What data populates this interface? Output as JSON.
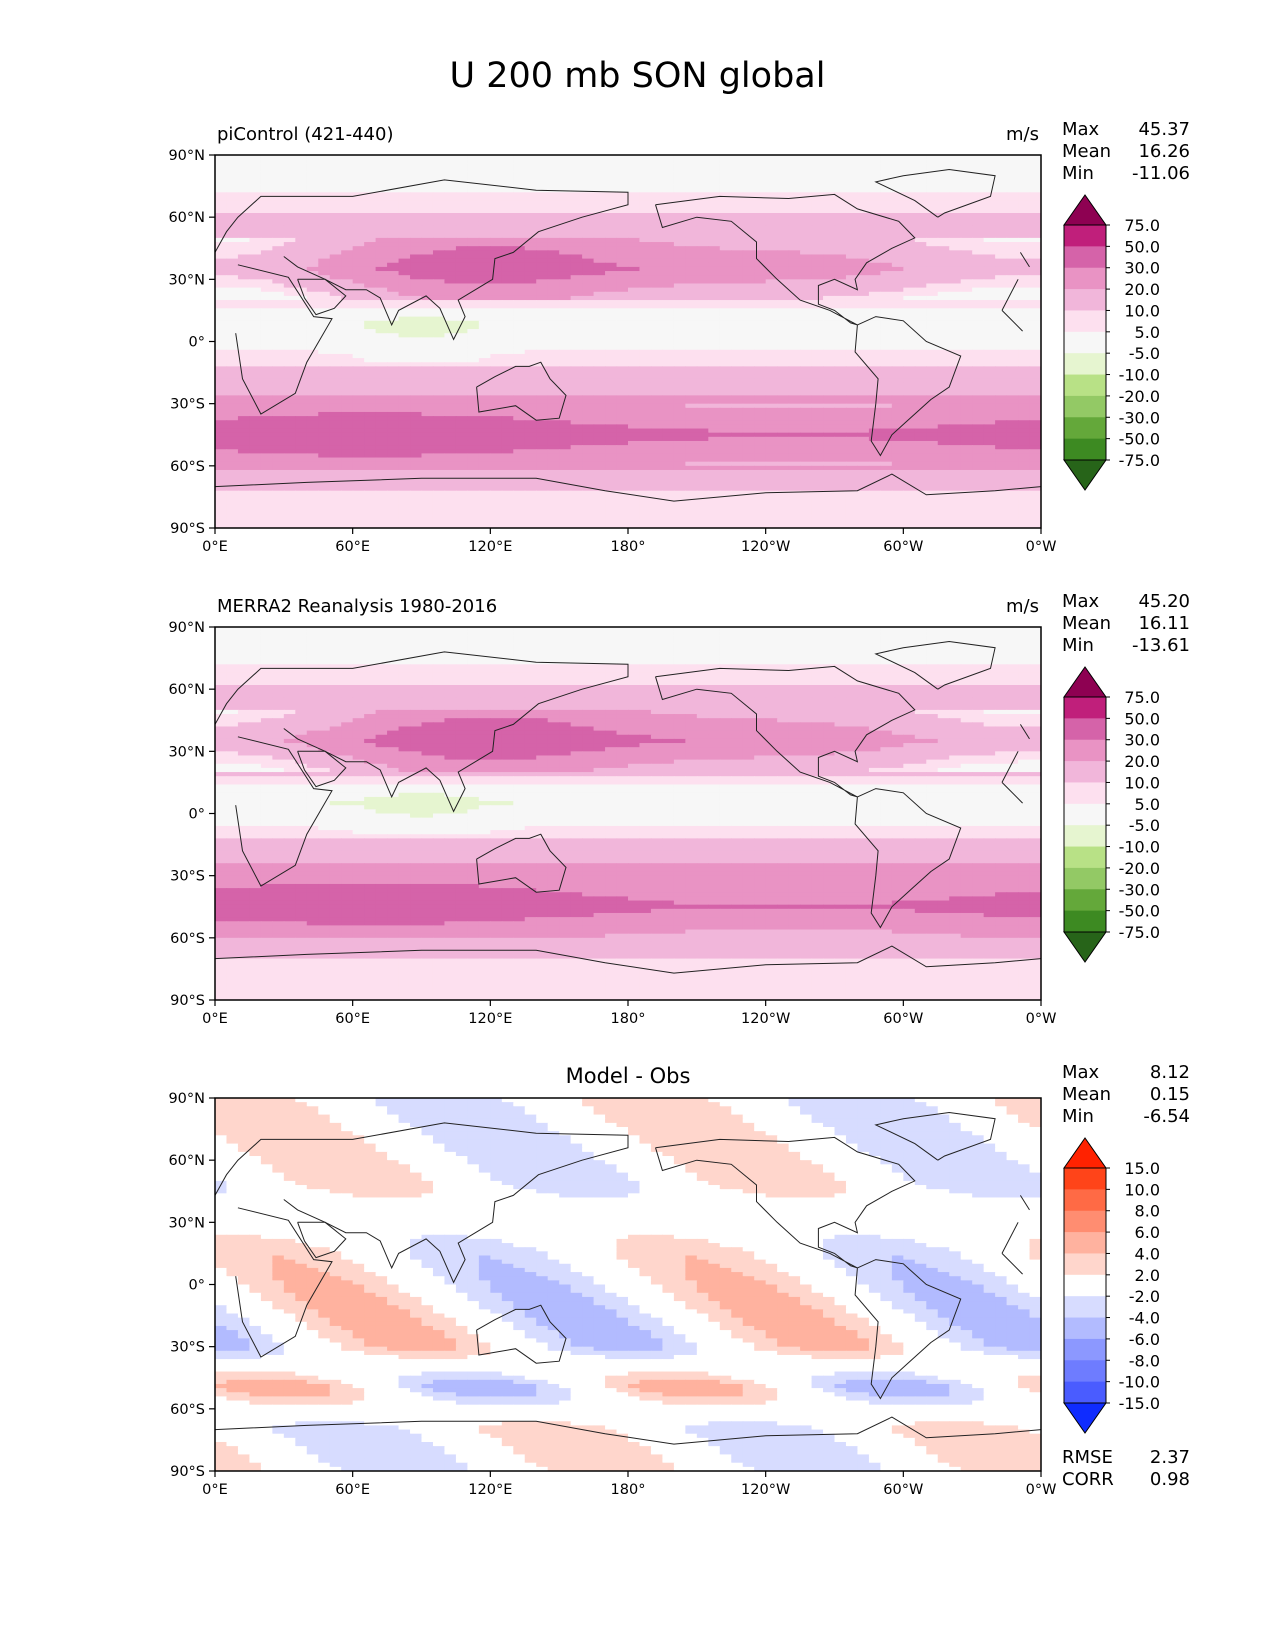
{
  "title": "U 200 mb SON global",
  "x_ticks": [
    "0°E",
    "60°E",
    "120°E",
    "180°",
    "120°W",
    "60°W",
    "0°W"
  ],
  "y_ticks": [
    "90°N",
    "60°N",
    "30°N",
    "0°",
    "30°S",
    "60°S",
    "90°S"
  ],
  "stat_labels": {
    "max": "Max",
    "mean": "Mean",
    "min": "Min",
    "rmse": "RMSE",
    "corr": "CORR"
  },
  "colors": {
    "pos_scale": [
      "#f7f7f7",
      "#fde0ef",
      "#f1b6da",
      "#e993c4",
      "#d563a9",
      "#c01f7b",
      "#8e0152"
    ],
    "neg_scale": [
      "#f7f7f7",
      "#e6f5d0",
      "#b8e186",
      "#93c965",
      "#64a83a",
      "#3d8a22",
      "#276419"
    ],
    "diff_pos": [
      "#ffffff",
      "#ffd6cc",
      "#ffb29f",
      "#ff8d71",
      "#ff6a45",
      "#ff4419",
      "#ff2200"
    ],
    "diff_neg": [
      "#ffffff",
      "#d7dcff",
      "#b2bbff",
      "#8c98ff",
      "#6e7cff",
      "#4a5cff",
      "#0f2cff"
    ]
  },
  "chart_data": [
    {
      "type": "heatmap",
      "title": "piControl (421-440)",
      "units": "m/s",
      "stats": {
        "max": "45.37",
        "mean": "16.26",
        "min": "-11.06"
      },
      "colorbar_levels": [
        "75.0",
        "50.0",
        "30.0",
        "20.0",
        "10.0",
        "5.0",
        "-5.0",
        "-10.0",
        "-20.0",
        "-30.0",
        "-50.0",
        "-75.0"
      ],
      "xlim": [
        0,
        360
      ],
      "ylim": [
        -90,
        90
      ],
      "bands": [
        {
          "lat": 75,
          "value": 4
        },
        {
          "lat": 52,
          "value": 14
        },
        {
          "lat": 35,
          "value": 26
        },
        {
          "lat": 8,
          "value": -3
        },
        {
          "lat": -30,
          "value": 22
        },
        {
          "lat": -45,
          "value": 35
        },
        {
          "lat": -60,
          "value": 22
        },
        {
          "lat": -75,
          "value": 6
        }
      ]
    },
    {
      "type": "heatmap",
      "title": "MERRA2 Reanalysis 1980-2016",
      "units": "m/s",
      "stats": {
        "max": "45.20",
        "mean": "16.11",
        "min": "-13.61"
      },
      "colorbar_levels": [
        "75.0",
        "50.0",
        "30.0",
        "20.0",
        "10.0",
        "5.0",
        "-5.0",
        "-10.0",
        "-20.0",
        "-30.0",
        "-50.0",
        "-75.0"
      ],
      "xlim": [
        0,
        360
      ],
      "ylim": [
        -90,
        90
      ],
      "bands": [
        {
          "lat": 75,
          "value": 4
        },
        {
          "lat": 52,
          "value": 14
        },
        {
          "lat": 35,
          "value": 28
        },
        {
          "lat": 5,
          "value": -4
        },
        {
          "lat": -30,
          "value": 24
        },
        {
          "lat": -45,
          "value": 34
        },
        {
          "lat": -60,
          "value": 20
        },
        {
          "lat": -75,
          "value": 6
        }
      ]
    },
    {
      "type": "heatmap",
      "title": "Model - Obs",
      "units": "",
      "stats": {
        "max": "8.12",
        "mean": "0.15",
        "min": "-6.54",
        "rmse": "2.37",
        "corr": "0.98"
      },
      "colorbar_levels": [
        "15.0",
        "10.0",
        "8.0",
        "6.0",
        "4.0",
        "2.0",
        "-2.0",
        "-4.0",
        "-6.0",
        "-8.0",
        "-10.0",
        "-15.0"
      ],
      "xlim": [
        0,
        360
      ],
      "ylim": [
        -90,
        90
      ],
      "bands": [
        {
          "lat": 75,
          "value": -3
        },
        {
          "lat": 50,
          "value": -3
        },
        {
          "lat": 15,
          "value": 3
        },
        {
          "lat": -10,
          "value": 4
        },
        {
          "lat": -30,
          "value": 4
        },
        {
          "lat": -50,
          "value": -5
        },
        {
          "lat": -70,
          "value": 3
        }
      ]
    }
  ]
}
